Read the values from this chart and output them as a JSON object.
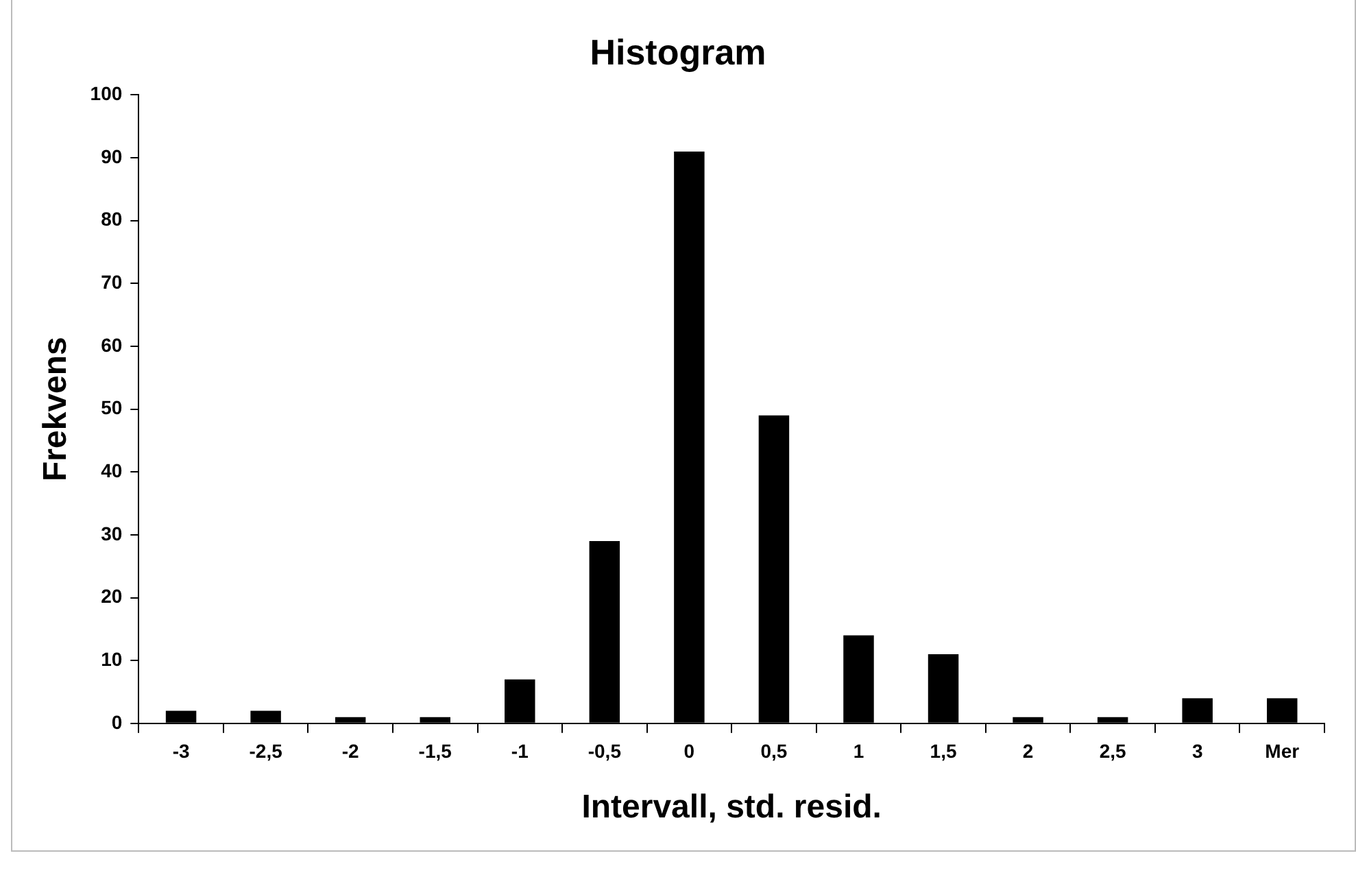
{
  "chart_data": {
    "type": "bar",
    "title": "Histogram",
    "xlabel": "Intervall, std. resid.",
    "ylabel": "Frekvens",
    "categories": [
      "-3",
      "-2,5",
      "-2",
      "-1,5",
      "-1",
      "-0,5",
      "0",
      "0,5",
      "1",
      "1,5",
      "2",
      "2,5",
      "3",
      "Mer"
    ],
    "values": [
      2,
      2,
      1,
      1,
      7,
      29,
      91,
      49,
      14,
      11,
      1,
      1,
      4,
      4
    ],
    "color": "#000000",
    "ylim": [
      0,
      100
    ],
    "yticks": [
      0,
      10,
      20,
      30,
      40,
      50,
      60,
      70,
      80,
      90,
      100
    ],
    "grid": false,
    "legend": false
  }
}
